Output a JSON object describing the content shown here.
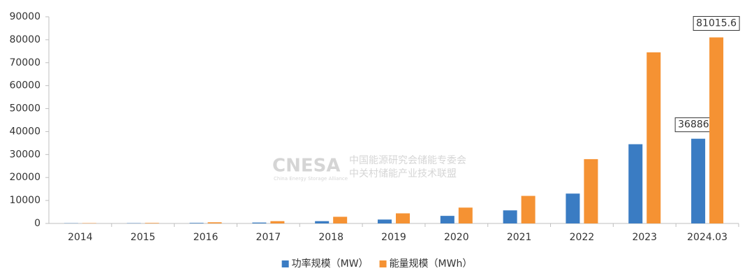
{
  "chart_data": {
    "type": "bar",
    "categories": [
      "2014",
      "2015",
      "2016",
      "2017",
      "2018",
      "2019",
      "2020",
      "2021",
      "2022",
      "2023",
      "2024.03"
    ],
    "series": [
      {
        "name": "功率规模（MW）",
        "color": "#3a7cc3",
        "values": [
          100,
          130,
          240,
          390,
          1000,
          1700,
          3300,
          5700,
          13000,
          34500,
          36886.3
        ],
        "value_labels": [
          null,
          null,
          null,
          null,
          null,
          null,
          null,
          null,
          null,
          null,
          "36886.3"
        ]
      },
      {
        "name": "能量规模（MWh）",
        "color": "#f59233",
        "values": [
          150,
          230,
          500,
          1000,
          2900,
          4400,
          6900,
          12000,
          28000,
          74500,
          81015.6
        ],
        "value_labels": [
          null,
          null,
          null,
          null,
          null,
          null,
          null,
          null,
          null,
          null,
          "81015.6"
        ]
      }
    ],
    "ylim": [
      0,
      90000
    ],
    "yticks": [
      0,
      10000,
      20000,
      30000,
      40000,
      50000,
      60000,
      70000,
      80000,
      90000
    ],
    "grid": false,
    "legend": "bottom",
    "watermark": {
      "logo": "CNESA",
      "lines": [
        "中国能源研究会储能专委会",
        "中关村储能产业技术联盟"
      ],
      "sub": "China Energy Storage Alliance"
    }
  }
}
